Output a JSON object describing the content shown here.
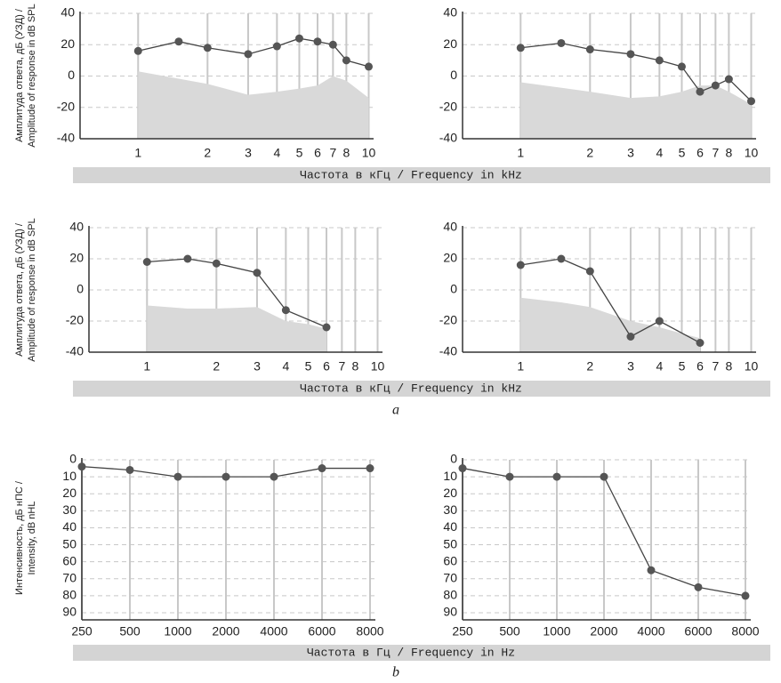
{
  "chart_data": [
    {
      "type": "line",
      "xscale": "log",
      "xlim": [
        0.56,
        10.5
      ],
      "xticks": [
        1,
        2,
        3,
        4,
        5,
        6,
        7,
        8,
        10
      ],
      "ylim": [
        -40,
        40
      ],
      "yticks": [
        -40,
        -20,
        0,
        20,
        40
      ],
      "grid": true,
      "series": [
        {
          "type": "area",
          "color": "#d9d9d9",
          "x": [
            1,
            2,
            3,
            4,
            5,
            6,
            7,
            8,
            10
          ],
          "values": [
            3,
            -5,
            -12,
            -10,
            -8,
            -6,
            0,
            -3,
            -14
          ]
        },
        {
          "type": "line",
          "color": "#555555",
          "x": [
            1,
            1.5,
            2,
            3,
            4,
            5,
            6,
            7,
            8,
            10
          ],
          "values": [
            16,
            22,
            18,
            14,
            19,
            24,
            22,
            20,
            10,
            6
          ]
        }
      ]
    },
    {
      "type": "line",
      "xscale": "log",
      "xlim": [
        0.56,
        10.5
      ],
      "xticks": [
        1,
        2,
        3,
        4,
        5,
        6,
        7,
        8,
        10
      ],
      "ylim": [
        -40,
        40
      ],
      "yticks": [
        -40,
        -20,
        0,
        20,
        40
      ],
      "grid": true,
      "series": [
        {
          "type": "area",
          "color": "#d9d9d9",
          "x": [
            1,
            2,
            3,
            4,
            5,
            6,
            7,
            8,
            10
          ],
          "values": [
            -4,
            -10,
            -14,
            -13,
            -10,
            -6,
            -6,
            -10,
            -18
          ]
        },
        {
          "type": "line",
          "color": "#555555",
          "x": [
            1,
            1.5,
            2,
            3,
            4,
            5,
            6,
            7,
            8,
            10
          ],
          "values": [
            18,
            21,
            17,
            14,
            10,
            6,
            -10,
            -6,
            -2,
            -16
          ]
        }
      ]
    },
    {
      "type": "line",
      "xscale": "log",
      "xlim": [
        0.56,
        10.5
      ],
      "xticks": [
        1,
        2,
        3,
        4,
        5,
        6,
        7,
        8,
        10
      ],
      "ylim": [
        -40,
        40
      ],
      "yticks": [
        -40,
        -20,
        0,
        20,
        40
      ],
      "grid": true,
      "series": [
        {
          "type": "area",
          "color": "#d9d9d9",
          "x": [
            1,
            1.5,
            2,
            3,
            4,
            5,
            6
          ],
          "values": [
            -10,
            -12,
            -12,
            -11,
            -20,
            -22,
            -25
          ]
        },
        {
          "type": "line",
          "color": "#555555",
          "x": [
            1,
            1.5,
            2,
            3,
            4,
            6
          ],
          "values": [
            18,
            20,
            17,
            11,
            -13,
            -24
          ]
        }
      ]
    },
    {
      "type": "line",
      "xscale": "log",
      "xlim": [
        0.56,
        10.5
      ],
      "xticks": [
        1,
        2,
        3,
        4,
        5,
        6,
        7,
        8,
        10
      ],
      "ylim": [
        -40,
        40
      ],
      "yticks": [
        -40,
        -20,
        0,
        20,
        40
      ],
      "grid": true,
      "series": [
        {
          "type": "area",
          "color": "#d9d9d9",
          "x": [
            1,
            1.5,
            2,
            3,
            4,
            5,
            6
          ],
          "values": [
            -5,
            -8,
            -11,
            -20,
            -24,
            -28,
            -31
          ]
        },
        {
          "type": "line",
          "color": "#555555",
          "x": [
            1,
            1.5,
            2,
            3,
            4,
            6
          ],
          "values": [
            16,
            20,
            12,
            -30,
            -20,
            -34
          ]
        }
      ]
    },
    {
      "type": "line",
      "categories": [
        "250",
        "500",
        "1000",
        "2000",
        "4000",
        "6000",
        "8000"
      ],
      "ylim": [
        90,
        0
      ],
      "yticks": [
        0,
        10,
        20,
        30,
        40,
        50,
        60,
        70,
        80,
        90
      ],
      "grid": true,
      "series": [
        {
          "type": "line",
          "color": "#555555",
          "values": [
            4,
            6,
            10,
            10,
            10,
            5,
            5
          ]
        }
      ]
    },
    {
      "type": "line",
      "categories": [
        "250",
        "500",
        "1000",
        "2000",
        "4000",
        "6000",
        "8000"
      ],
      "ylim": [
        90,
        0
      ],
      "yticks": [
        0,
        10,
        20,
        30,
        40,
        50,
        60,
        70,
        80,
        90
      ],
      "grid": true,
      "series": [
        {
          "type": "line",
          "color": "#555555",
          "values": [
            5,
            10,
            10,
            10,
            65,
            75,
            80
          ]
        }
      ]
    }
  ],
  "rows": [
    {
      "ylabel": [
        "Амплитуда ответа, дБ (УЗД) /",
        "Amplitude of response in dB SPL"
      ],
      "xlabel": "Частота в кГц / Frequency in kHz"
    },
    {
      "ylabel": [
        "Амплитуда ответа, дБ (УЗД) /",
        "Amplitude of response in dB SPL"
      ],
      "xlabel": "Частота в кГц / Frequency in kHz"
    },
    {
      "ylabel": [
        "Интенсивность, дБ нПС /",
        "Intensity, dB nHL"
      ],
      "xlabel": "Частота в Гц / Frequency in Hz"
    }
  ],
  "panel_labels": [
    "a",
    "b"
  ]
}
